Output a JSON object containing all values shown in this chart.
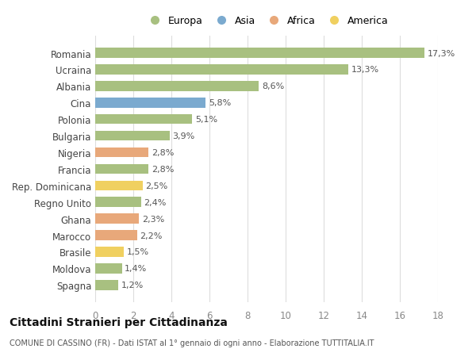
{
  "countries": [
    "Romania",
    "Ucraina",
    "Albania",
    "Cina",
    "Polonia",
    "Bulgaria",
    "Nigeria",
    "Francia",
    "Rep. Dominicana",
    "Regno Unito",
    "Ghana",
    "Marocco",
    "Brasile",
    "Moldova",
    "Spagna"
  ],
  "values": [
    17.3,
    13.3,
    8.6,
    5.8,
    5.1,
    3.9,
    2.8,
    2.8,
    2.5,
    2.4,
    2.3,
    2.2,
    1.5,
    1.4,
    1.2
  ],
  "labels": [
    "17,3%",
    "13,3%",
    "8,6%",
    "5,8%",
    "5,1%",
    "3,9%",
    "2,8%",
    "2,8%",
    "2,5%",
    "2,4%",
    "2,3%",
    "2,2%",
    "1,5%",
    "1,4%",
    "1,2%"
  ],
  "continents": [
    "Europa",
    "Europa",
    "Europa",
    "Asia",
    "Europa",
    "Europa",
    "Africa",
    "Europa",
    "America",
    "Europa",
    "Africa",
    "Africa",
    "America",
    "Europa",
    "Europa"
  ],
  "continent_colors": {
    "Europa": "#a8c080",
    "Asia": "#7baacf",
    "Africa": "#e8a87a",
    "America": "#f0d060"
  },
  "legend_order": [
    "Europa",
    "Asia",
    "Africa",
    "America"
  ],
  "xlim": [
    0,
    18
  ],
  "xticks": [
    0,
    2,
    4,
    6,
    8,
    10,
    12,
    14,
    16,
    18
  ],
  "title": "Cittadini Stranieri per Cittadinanza",
  "subtitle": "COMUNE DI CASSINO (FR) - Dati ISTAT al 1° gennaio di ogni anno - Elaborazione TUTTITALIA.IT",
  "background_color": "#ffffff",
  "grid_color": "#dddddd",
  "bar_height": 0.6
}
